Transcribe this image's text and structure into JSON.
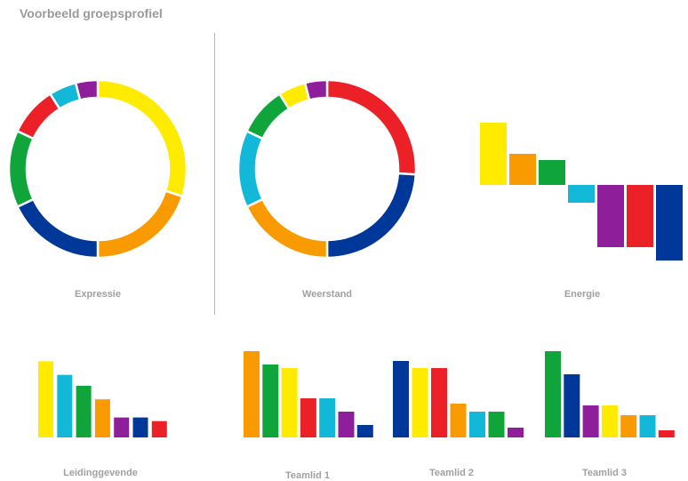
{
  "title": "Voorbeeld groepsprofiel",
  "colors": {
    "yellow": "#FFEB00",
    "orange": "#F99A00",
    "red": "#EC2027",
    "blue": "#00389A",
    "green": "#0FA53A",
    "cyan": "#13B8D8",
    "purple": "#8E1E9A"
  },
  "chart_data": [
    {
      "type": "pie",
      "title": "Expressie",
      "donut": true,
      "slices": [
        {
          "color": "yellow",
          "value": 30
        },
        {
          "color": "orange",
          "value": 20
        },
        {
          "color": "blue",
          "value": 18
        },
        {
          "color": "green",
          "value": 14
        },
        {
          "color": "red",
          "value": 9
        },
        {
          "color": "cyan",
          "value": 5
        },
        {
          "color": "purple",
          "value": 4
        }
      ]
    },
    {
      "type": "pie",
      "title": "Weerstand",
      "donut": true,
      "slices": [
        {
          "color": "red",
          "value": 26
        },
        {
          "color": "blue",
          "value": 24
        },
        {
          "color": "orange",
          "value": 18
        },
        {
          "color": "cyan",
          "value": 14
        },
        {
          "color": "green",
          "value": 9
        },
        {
          "color": "yellow",
          "value": 5
        },
        {
          "color": "purple",
          "value": 4
        }
      ]
    },
    {
      "type": "bar",
      "title": "Energie",
      "waterfall": true,
      "bars": [
        {
          "color": "yellow",
          "value": 7
        },
        {
          "color": "orange",
          "value": 3.5
        },
        {
          "color": "green",
          "value": 2.8
        },
        {
          "color": "cyan",
          "value": -2
        },
        {
          "color": "purple",
          "value": -7
        },
        {
          "color": "red",
          "value": -7
        },
        {
          "color": "blue",
          "value": -8.5
        }
      ]
    },
    {
      "type": "bar",
      "title": "Leidinggevende",
      "bars": [
        {
          "color": "yellow",
          "value": 8.4
        },
        {
          "color": "cyan",
          "value": 6.9
        },
        {
          "color": "green",
          "value": 5.7
        },
        {
          "color": "orange",
          "value": 4.2
        },
        {
          "color": "purple",
          "value": 2.2
        },
        {
          "color": "blue",
          "value": 2.2
        },
        {
          "color": "red",
          "value": 1.8
        }
      ]
    },
    {
      "type": "bar",
      "title": "Teamlid 1",
      "bars": [
        {
          "color": "orange",
          "value": 9.7
        },
        {
          "color": "green",
          "value": 8.2
        },
        {
          "color": "yellow",
          "value": 7.8
        },
        {
          "color": "red",
          "value": 4.4
        },
        {
          "color": "cyan",
          "value": 4.4
        },
        {
          "color": "purple",
          "value": 2.9
        },
        {
          "color": "blue",
          "value": 1.4
        }
      ]
    },
    {
      "type": "bar",
      "title": "Teamlid 2",
      "bars": [
        {
          "color": "blue",
          "value": 8.6
        },
        {
          "color": "yellow",
          "value": 7.8
        },
        {
          "color": "red",
          "value": 7.8
        },
        {
          "color": "orange",
          "value": 3.8
        },
        {
          "color": "cyan",
          "value": 2.9
        },
        {
          "color": "green",
          "value": 2.9
        },
        {
          "color": "purple",
          "value": 1.1
        }
      ]
    },
    {
      "type": "bar",
      "title": "Teamlid 3",
      "bars": [
        {
          "color": "green",
          "value": 9.7
        },
        {
          "color": "blue",
          "value": 7.1
        },
        {
          "color": "purple",
          "value": 3.6
        },
        {
          "color": "yellow",
          "value": 3.6
        },
        {
          "color": "orange",
          "value": 2.5
        },
        {
          "color": "cyan",
          "value": 2.5
        },
        {
          "color": "red",
          "value": 0.8
        }
      ]
    }
  ]
}
